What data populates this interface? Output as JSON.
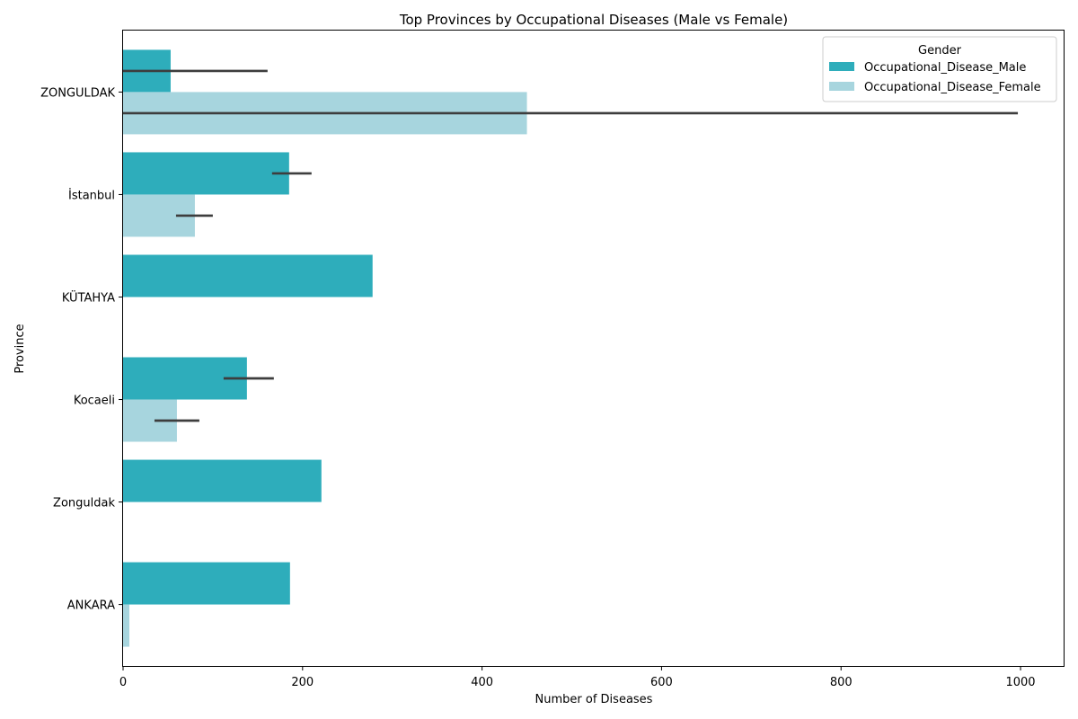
{
  "chart_data": {
    "type": "bar",
    "orientation": "horizontal",
    "title": "Top Provinces by Occupational Diseases (Male vs Female)",
    "xlabel": "Number of Diseases",
    "ylabel": "Province",
    "xlim": [
      0,
      1048
    ],
    "xticks": [
      0,
      200,
      400,
      600,
      800,
      1000
    ],
    "grid": false,
    "legend": {
      "title": "Gender",
      "position": "top-right"
    },
    "categories": [
      "ZONGULDAK",
      "İstanbul",
      "KÜTAHYA",
      "Kocaeli",
      "Zonguldak",
      "ANKARA"
    ],
    "series": [
      {
        "name": "Occupational_Disease_Male",
        "color": "#2eadbb",
        "values": [
          53,
          185,
          278,
          138,
          221,
          186
        ],
        "error": [
          [
            0,
            161
          ],
          [
            166,
            210
          ],
          null,
          [
            112,
            168
          ],
          null,
          null
        ]
      },
      {
        "name": "Occupational_Disease_Female",
        "color": "#a7d5de",
        "values": [
          450,
          80,
          0,
          60,
          0,
          7
        ],
        "error": [
          [
            0,
            997
          ],
          [
            59,
            100
          ],
          null,
          [
            35,
            85
          ],
          null,
          null
        ]
      }
    ]
  }
}
